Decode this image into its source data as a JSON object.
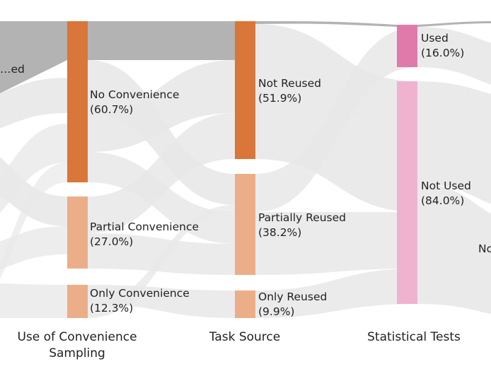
{
  "chart_data": {
    "type": "sankey",
    "stages": [
      {
        "id": "stage0",
        "title": [
          ""
        ],
        "nodes": [
          {
            "id": "s0-top",
            "name": "…ed",
            "pct": "",
            "color": "#b3b3b3"
          }
        ]
      },
      {
        "id": "convenience",
        "title": [
          "Use of Convenience",
          "Sampling"
        ],
        "nodes": [
          {
            "id": "conv-no",
            "name": "No Convenience",
            "pct": "(60.7%)",
            "value": 60.7,
            "color": "#d9763a"
          },
          {
            "id": "conv-partial",
            "name": "Partial Convenience",
            "pct": "(27.0%)",
            "value": 27.0,
            "color": "#ebae88"
          },
          {
            "id": "conv-only",
            "name": "Only Convenience",
            "pct": "(12.3%)",
            "value": 12.3,
            "color": "#ebae88"
          }
        ]
      },
      {
        "id": "task-source",
        "title": [
          "Task Source"
        ],
        "nodes": [
          {
            "id": "task-not",
            "name": "Not Reused",
            "pct": "(51.9%)",
            "value": 51.9,
            "color": "#d9763a"
          },
          {
            "id": "task-partial",
            "name": "Partially Reused",
            "pct": "(38.2%)",
            "value": 38.2,
            "color": "#ebae88"
          },
          {
            "id": "task-only",
            "name": "Only Reused",
            "pct": "(9.9%)",
            "value": 9.9,
            "color": "#ebae88"
          }
        ]
      },
      {
        "id": "stat-tests",
        "title": [
          "Statistical Tests"
        ],
        "nodes": [
          {
            "id": "stat-used",
            "name": "Used",
            "pct": "(16.0%)",
            "value": 16.0,
            "color": "#e07aab"
          },
          {
            "id": "stat-not",
            "name": "Not Used",
            "pct": "(84.0%)",
            "value": 84.0,
            "color": "#f0b3cf"
          }
        ]
      },
      {
        "id": "stage4",
        "title": [
          ""
        ],
        "nodes": [
          {
            "id": "s4-no",
            "name": "No",
            "pct": "",
            "color": "#f0b3cf"
          }
        ]
      }
    ],
    "highlighted_link": {
      "from": "conv-no",
      "to": "task-not",
      "color": "#b3b3b3"
    },
    "link_color": "#e8e8e8"
  }
}
